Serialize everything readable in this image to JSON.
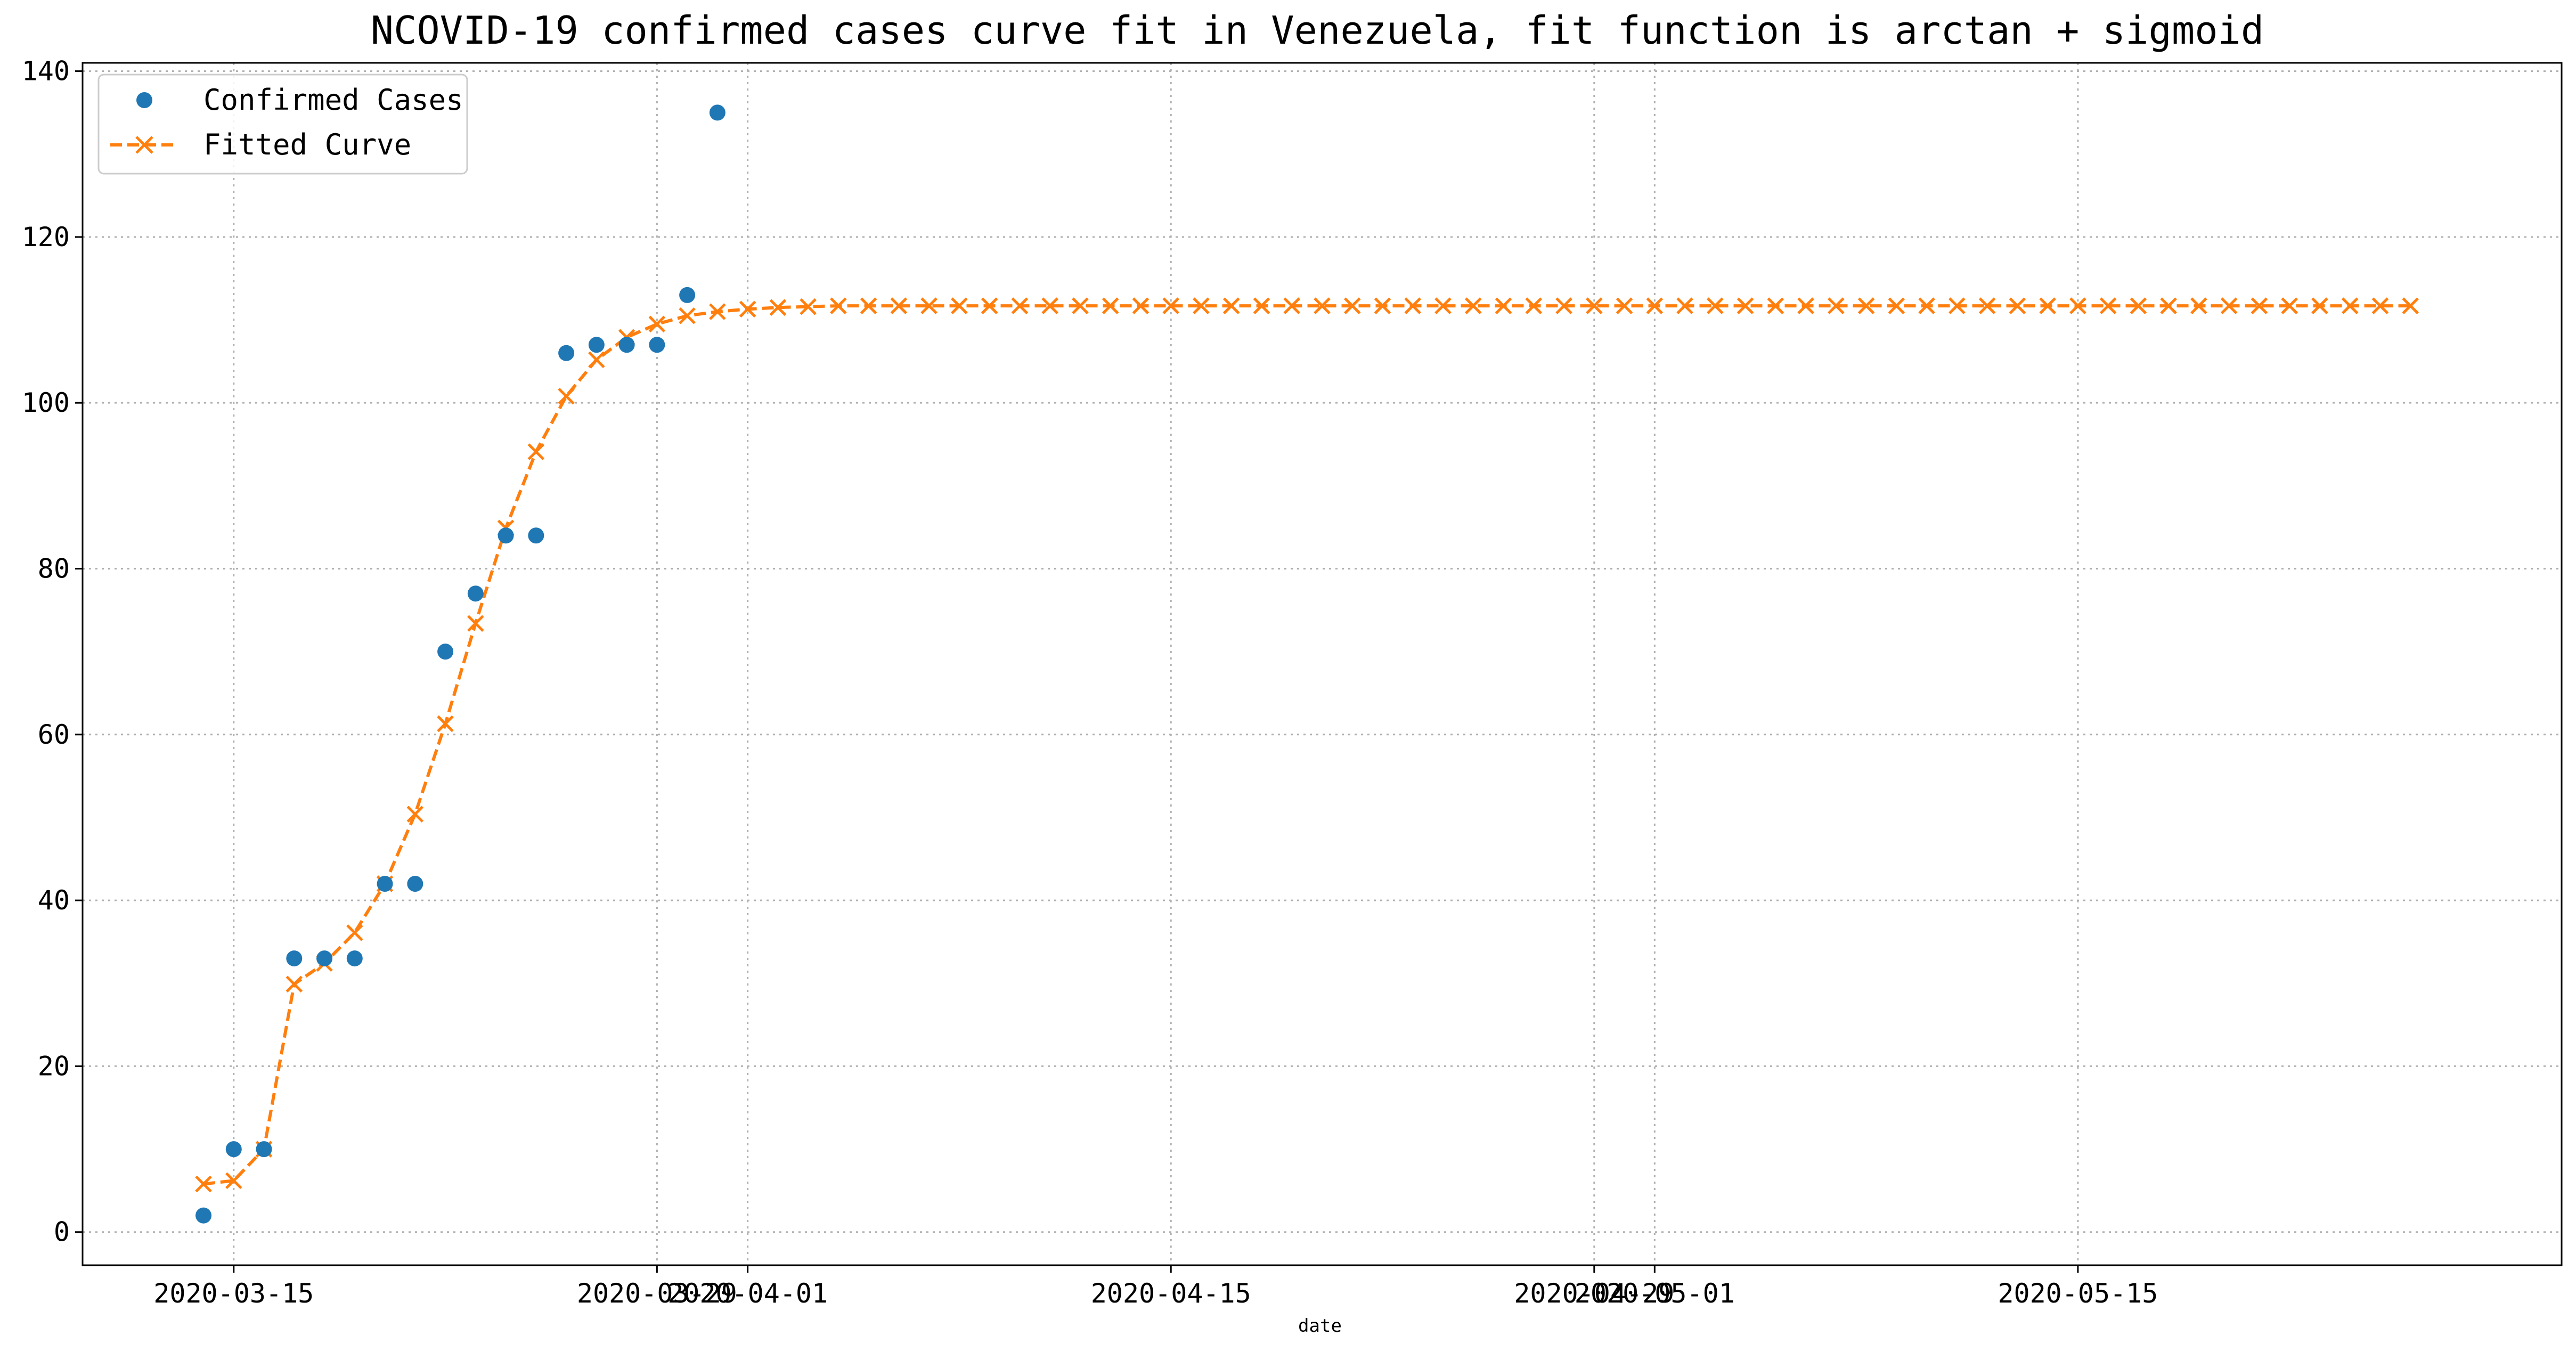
{
  "chart_data": {
    "type": "line",
    "title": "NCOVID-19 confirmed cases curve fit in Venezuela, fit function is arctan + sigmoid",
    "xlabel": "date",
    "ylabel": "",
    "xlim": [
      "2020-03-10",
      "2020-05-31"
    ],
    "ylim": [
      -4,
      141
    ],
    "grid": true,
    "legend_position": "top-left",
    "x_ticks": [
      {
        "date": "2020-03-15",
        "label": "2020-03-15"
      },
      {
        "date": "2020-03-29",
        "label": "2020-03-29"
      },
      {
        "date": "2020-04-01",
        "label": "2020-04-01"
      },
      {
        "date": "2020-04-15",
        "label": "2020-04-15"
      },
      {
        "date": "2020-04-29",
        "label": "2020-04-29"
      },
      {
        "date": "2020-05-01",
        "label": "2020-05-01"
      },
      {
        "date": "2020-05-15",
        "label": "2020-05-15"
      }
    ],
    "y_ticks": [
      0,
      20,
      40,
      60,
      80,
      100,
      120,
      140
    ],
    "series": [
      {
        "name": "Confirmed Cases",
        "style": "markers",
        "marker": "circle",
        "color": "#1f77b4",
        "x": [
          "2020-03-14",
          "2020-03-15",
          "2020-03-16",
          "2020-03-17",
          "2020-03-18",
          "2020-03-19",
          "2020-03-20",
          "2020-03-21",
          "2020-03-22",
          "2020-03-23",
          "2020-03-24",
          "2020-03-25",
          "2020-03-26",
          "2020-03-27",
          "2020-03-28",
          "2020-03-29",
          "2020-03-30",
          "2020-03-31"
        ],
        "y": [
          2,
          10,
          10,
          33,
          33,
          33,
          42,
          42,
          70,
          77,
          84,
          84,
          106,
          107,
          107,
          107,
          113,
          135
        ]
      },
      {
        "name": "Fitted Curve",
        "style": "dashed-line",
        "marker": "x",
        "color": "#ff7f0e",
        "x_start": "2020-03-14",
        "x_step_days": 1,
        "y": [
          5.8,
          6.2,
          10.0,
          29.9,
          32.4,
          36.1,
          42.0,
          50.4,
          61.3,
          73.4,
          84.9,
          94.1,
          100.8,
          105.2,
          107.9,
          109.5,
          110.5,
          111.0,
          111.3,
          111.5,
          111.6,
          111.7,
          111.7,
          111.7,
          111.7,
          111.7,
          111.7,
          111.7,
          111.7,
          111.7,
          111.7,
          111.7,
          111.7,
          111.7,
          111.7,
          111.7,
          111.7,
          111.7,
          111.7,
          111.7,
          111.7,
          111.7,
          111.7,
          111.7,
          111.7,
          111.7,
          111.7,
          111.7,
          111.7,
          111.7,
          111.7,
          111.7,
          111.7,
          111.7,
          111.7,
          111.7,
          111.7,
          111.7,
          111.7,
          111.7,
          111.7,
          111.7,
          111.7,
          111.7,
          111.7,
          111.7,
          111.7,
          111.7,
          111.7,
          111.7,
          111.7,
          111.7,
          111.7,
          111.7
        ]
      }
    ]
  }
}
